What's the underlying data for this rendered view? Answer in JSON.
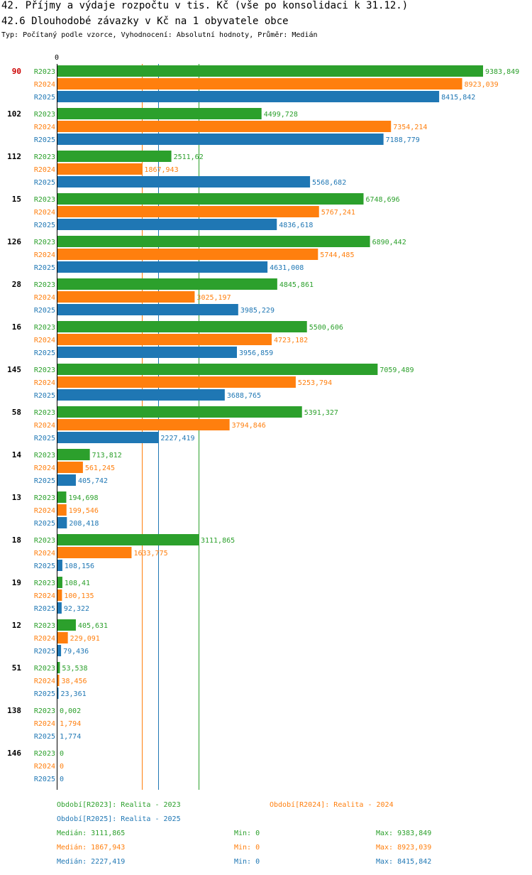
{
  "header": {
    "title": "42. Příjmy a výdaje rozpočtu v tis. Kč (vše po konsolidaci k 31.12.)",
    "subtitle": "42.6 Dlouhodobé závazky v Kč na 1 obyvatele obce",
    "info": "Typ: Počítaný podle vzorce, Vyhodnocení: Absolutní hodnoty, Průměr: Medián"
  },
  "colors": {
    "R2023": "#2ca02c",
    "R2024": "#ff7f0e",
    "R2025": "#1f77b4",
    "highlight": "#cc0000"
  },
  "chart_data": {
    "type": "bar",
    "orientation": "horizontal",
    "title": "42.6 Dlouhodobé závazky v Kč na 1 obyvatele obce",
    "axis_zero_label": "0",
    "xlim": [
      0,
      9383.849
    ],
    "highlight_category": "90",
    "series_names": [
      "R2023",
      "R2024",
      "R2025"
    ],
    "categories": [
      {
        "label": "90",
        "values": [
          9383.849,
          8923.039,
          8415.842
        ],
        "labels": [
          "9383,849",
          "8923,039",
          "8415,842"
        ]
      },
      {
        "label": "102",
        "values": [
          4499.728,
          7354.214,
          7188.779
        ],
        "labels": [
          "4499,728",
          "7354,214",
          "7188,779"
        ]
      },
      {
        "label": "112",
        "values": [
          2511.62,
          1867.943,
          5568.682
        ],
        "labels": [
          "2511,62",
          "1867,943",
          "5568,682"
        ]
      },
      {
        "label": "15",
        "values": [
          6748.696,
          5767.241,
          4836.618
        ],
        "labels": [
          "6748,696",
          "5767,241",
          "4836,618"
        ]
      },
      {
        "label": "126",
        "values": [
          6890.442,
          5744.485,
          4631.008
        ],
        "labels": [
          "6890,442",
          "5744,485",
          "4631,008"
        ]
      },
      {
        "label": "28",
        "values": [
          4845.861,
          3025.197,
          3985.229
        ],
        "labels": [
          "4845,861",
          "3025,197",
          "3985,229"
        ]
      },
      {
        "label": "16",
        "values": [
          5500.606,
          4723.182,
          3956.859
        ],
        "labels": [
          "5500,606",
          "4723,182",
          "3956,859"
        ]
      },
      {
        "label": "145",
        "values": [
          7059.489,
          5253.794,
          3688.765
        ],
        "labels": [
          "7059,489",
          "5253,794",
          "3688,765"
        ]
      },
      {
        "label": "58",
        "values": [
          5391.327,
          3794.846,
          2227.419
        ],
        "labels": [
          "5391,327",
          "3794,846",
          "2227,419"
        ]
      },
      {
        "label": "14",
        "values": [
          713.812,
          561.245,
          405.742
        ],
        "labels": [
          "713,812",
          "561,245",
          "405,742"
        ]
      },
      {
        "label": "13",
        "values": [
          194.698,
          199.546,
          208.418
        ],
        "labels": [
          "194,698",
          "199,546",
          "208,418"
        ]
      },
      {
        "label": "18",
        "values": [
          3111.865,
          1633.775,
          108.156
        ],
        "labels": [
          "3111,865",
          "1633,775",
          "108,156"
        ]
      },
      {
        "label": "19",
        "values": [
          108.41,
          100.135,
          92.322
        ],
        "labels": [
          "108,41",
          "100,135",
          "92,322"
        ]
      },
      {
        "label": "12",
        "values": [
          405.631,
          229.091,
          79.436
        ],
        "labels": [
          "405,631",
          "229,091",
          "79,436"
        ]
      },
      {
        "label": "51",
        "values": [
          53.538,
          38.456,
          23.361
        ],
        "labels": [
          "53,538",
          "38,456",
          "23,361"
        ]
      },
      {
        "label": "138",
        "values": [
          0.002,
          1.794,
          1.774
        ],
        "labels": [
          "0,002",
          "1,794",
          "1,774"
        ]
      },
      {
        "label": "146",
        "values": [
          0,
          0,
          0
        ],
        "labels": [
          "0",
          "0",
          "0"
        ]
      }
    ],
    "medians": [
      3111.865,
      1867.943,
      2227.419
    ]
  },
  "legend": {
    "period_r2023": "Období[R2023]: Realita - 2023",
    "period_r2024": "Období[R2024]: Realita - 2024",
    "period_r2025": "Období[R2025]: Realita - 2025",
    "stats": [
      {
        "median": "Medián: 3111,865",
        "min": "Min: 0",
        "max": "Max: 9383,849"
      },
      {
        "median": "Medián: 1867,943",
        "min": "Min: 0",
        "max": "Max: 8923,039"
      },
      {
        "median": "Medián: 2227,419",
        "min": "Min: 0",
        "max": "Max: 8415,842"
      }
    ]
  }
}
